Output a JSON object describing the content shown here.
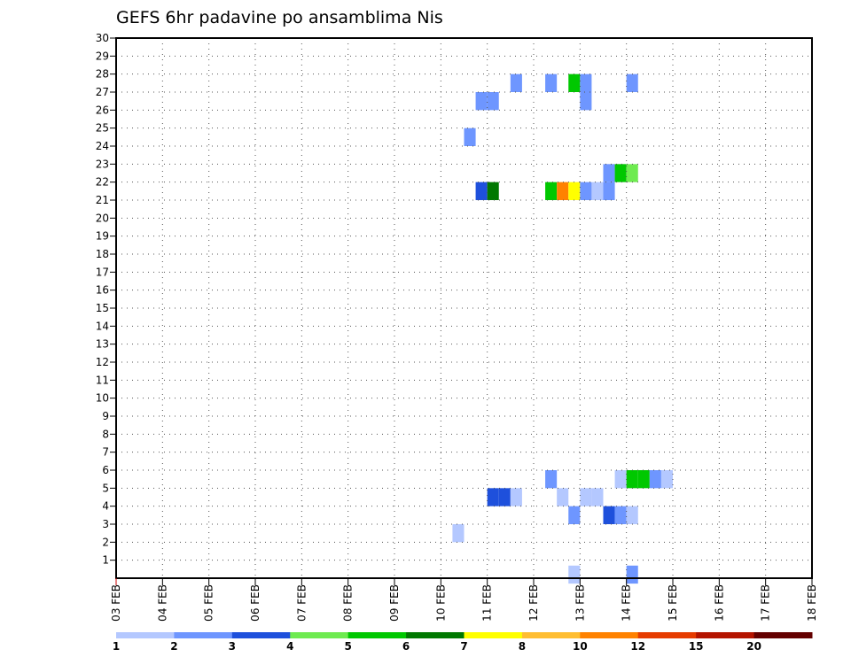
{
  "chart_data": {
    "type": "heatmap",
    "title": "GEFS 6hr padavine po ansamblima Nis",
    "xlabel": "",
    "ylabel": "",
    "x_ticks": [
      "03 FEB",
      "04 FEB",
      "05 FEB",
      "06 FEB",
      "07 FEB",
      "08 FEB",
      "09 FEB",
      "10 FEB",
      "11 FEB",
      "12 FEB",
      "13 FEB",
      "14 FEB",
      "15 FEB",
      "16 FEB",
      "17 FEB",
      "18 FEB"
    ],
    "xlim": [
      0,
      60
    ],
    "y_ticks": [
      1,
      2,
      3,
      4,
      5,
      6,
      7,
      8,
      9,
      10,
      11,
      12,
      13,
      14,
      15,
      16,
      17,
      18,
      19,
      20,
      21,
      22,
      23,
      24,
      25,
      26,
      27,
      28,
      29,
      30
    ],
    "ylim": [
      0,
      30
    ],
    "grid": true,
    "legend": {
      "position": "bottom",
      "labels": [
        "1",
        "2",
        "3",
        "4",
        "5",
        "6",
        "7",
        "8",
        "10",
        "12",
        "15",
        "20"
      ],
      "colors": [
        "#b4c8ff",
        "#6e96ff",
        "#1e50dc",
        "#6eeb50",
        "#00c800",
        "#007800",
        "#ffff00",
        "#ffbe32",
        "#ff8200",
        "#e63c00",
        "#b41400",
        "#640000"
      ]
    },
    "cells": [
      {
        "step": 34.5,
        "member": 27.5,
        "level": 1
      },
      {
        "step": 37.5,
        "member": 27.5,
        "level": 1
      },
      {
        "step": 39.5,
        "member": 27.5,
        "level": 4
      },
      {
        "step": 40.5,
        "member": 27.5,
        "level": 1
      },
      {
        "step": 40.5,
        "member": 26.5,
        "level": 1
      },
      {
        "step": 44.5,
        "member": 27.5,
        "level": 1
      },
      {
        "step": 31.5,
        "member": 26.5,
        "level": 1
      },
      {
        "step": 32.5,
        "member": 26.5,
        "level": 1
      },
      {
        "step": 30.5,
        "member": 24.5,
        "level": 1
      },
      {
        "step": 42.5,
        "member": 22.5,
        "level": 1
      },
      {
        "step": 43.5,
        "member": 22.5,
        "level": 4
      },
      {
        "step": 44.5,
        "member": 22.5,
        "level": 3
      },
      {
        "step": 31.5,
        "member": 21.5,
        "level": 2
      },
      {
        "step": 32.5,
        "member": 21.5,
        "level": 5
      },
      {
        "step": 37.5,
        "member": 21.5,
        "level": 4
      },
      {
        "step": 38.5,
        "member": 21.5,
        "level": 8
      },
      {
        "step": 39.5,
        "member": 21.5,
        "level": 6
      },
      {
        "step": 40.5,
        "member": 21.5,
        "level": 1
      },
      {
        "step": 41.5,
        "member": 21.5,
        "level": 0
      },
      {
        "step": 42.5,
        "member": 21.5,
        "level": 1
      },
      {
        "step": 37.5,
        "member": 5.5,
        "level": 1
      },
      {
        "step": 43.5,
        "member": 5.5,
        "level": 0
      },
      {
        "step": 44.5,
        "member": 5.5,
        "level": 4
      },
      {
        "step": 45.5,
        "member": 5.5,
        "level": 4
      },
      {
        "step": 46.5,
        "member": 5.5,
        "level": 1
      },
      {
        "step": 47.5,
        "member": 5.5,
        "level": 0
      },
      {
        "step": 32.5,
        "member": 4.5,
        "level": 2
      },
      {
        "step": 33.5,
        "member": 4.5,
        "level": 2
      },
      {
        "step": 34.5,
        "member": 4.5,
        "level": 0
      },
      {
        "step": 38.5,
        "member": 4.5,
        "level": 0
      },
      {
        "step": 40.5,
        "member": 4.5,
        "level": 0
      },
      {
        "step": 41.5,
        "member": 4.5,
        "level": 0
      },
      {
        "step": 39.5,
        "member": 3.5,
        "level": 1
      },
      {
        "step": 42.5,
        "member": 3.5,
        "level": 2
      },
      {
        "step": 43.5,
        "member": 3.5,
        "level": 1
      },
      {
        "step": 44.5,
        "member": 3.5,
        "level": 0
      },
      {
        "step": 29.5,
        "member": 2.5,
        "level": 0
      },
      {
        "step": 39.5,
        "member": 0.2,
        "level": 0
      },
      {
        "step": 44.5,
        "member": 0.2,
        "level": 1
      }
    ]
  }
}
